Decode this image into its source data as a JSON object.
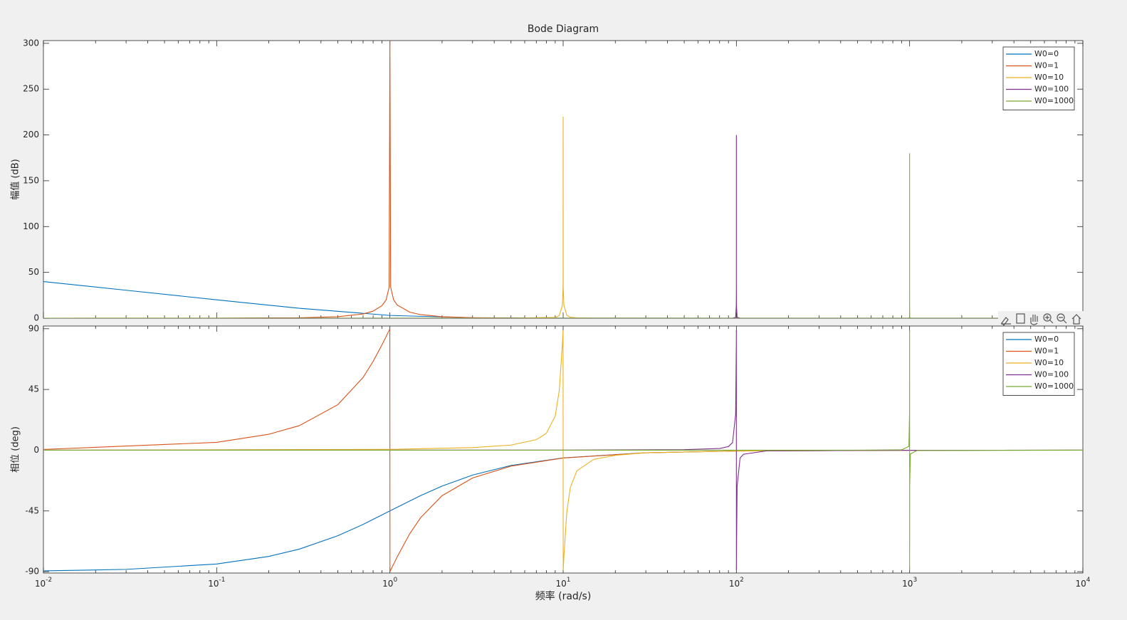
{
  "chart_data": [
    {
      "type": "line",
      "title": "Bode Diagram",
      "ylabel": "幅值 (dB)",
      "xscale": "log",
      "xlim": [
        0.01,
        10000
      ],
      "ylim": [
        0,
        303
      ],
      "yticks": [
        0,
        50,
        100,
        150,
        200,
        250,
        300
      ],
      "legend": "northeast",
      "series": [
        {
          "name": "W0=0",
          "color": "#0072BD",
          "x": [
            0.01,
            0.03,
            0.1,
            0.3,
            1,
            3,
            10,
            100,
            10000
          ],
          "values": [
            40,
            30.5,
            20.04,
            10.8,
            3.01,
            0.46,
            0.04,
            0,
            0
          ]
        },
        {
          "name": "W0=1",
          "color": "#D95319",
          "x": [
            0.01,
            0.1,
            0.3,
            0.5,
            0.7,
            0.8,
            0.9,
            0.95,
            0.99,
            1,
            1.01,
            1.05,
            1.1,
            1.3,
            1.5,
            2,
            3,
            5,
            10,
            100,
            10000
          ],
          "values": [
            0,
            0.04,
            0.45,
            1.6,
            4.6,
            7.7,
            13.7,
            19.8,
            33.9,
            303,
            34,
            20.2,
            14.5,
            6.6,
            3.9,
            1.6,
            0.57,
            0.18,
            0,
            0,
            0
          ]
        },
        {
          "name": "W0=10",
          "color": "#EDB120",
          "x": [
            0.01,
            1,
            5,
            9,
            9.5,
            9.9,
            9.99,
            10,
            10.01,
            10.1,
            10.5,
            11,
            12,
            15,
            100,
            10000
          ],
          "values": [
            0,
            0,
            0.02,
            0.88,
            2.9,
            14.1,
            34,
            220,
            34,
            14.2,
            3.1,
            1.05,
            0.31,
            0.05,
            0,
            0
          ]
        },
        {
          "name": "W0=100",
          "color": "#7E2F8E",
          "x": [
            0.01,
            95,
            99,
            99.9,
            99.99,
            100,
            100.01,
            100.1,
            101,
            105,
            10000
          ],
          "values": [
            0,
            0.04,
            0.95,
            14.1,
            34,
            200,
            34,
            14.1,
            0.95,
            0.04,
            0
          ]
        },
        {
          "name": "W0=1000",
          "color": "#77AC30",
          "x": [
            0.01,
            990,
            999,
            999.9,
            999.99,
            1000,
            1000.01,
            1000.1,
            1001,
            1010,
            10000
          ],
          "values": [
            0,
            0.01,
            0.97,
            14.2,
            34,
            180,
            34,
            14.2,
            0.97,
            0.01,
            0
          ]
        }
      ]
    },
    {
      "type": "line",
      "ylabel": "相位 (deg)",
      "xlabel": "频率  (rad/s)",
      "xscale": "log",
      "xlim": [
        0.01,
        10000
      ],
      "ylim": [
        -91,
        92
      ],
      "yticks": [
        -90,
        -45,
        0,
        45,
        90
      ],
      "legend": "northeast",
      "xticks": [
        {
          "value": 0.01,
          "label": "10",
          "exponent": "-2"
        },
        {
          "value": 0.1,
          "label": "10",
          "exponent": "-1"
        },
        {
          "value": 1,
          "label": "10",
          "exponent": "0"
        },
        {
          "value": 10,
          "label": "10",
          "exponent": "1"
        },
        {
          "value": 100,
          "label": "10",
          "exponent": "2"
        },
        {
          "value": 1000,
          "label": "10",
          "exponent": "3"
        },
        {
          "value": 10000,
          "label": "10",
          "exponent": "4"
        }
      ],
      "series": [
        {
          "name": "W0=0",
          "color": "#0072BD",
          "x": [
            0.01,
            0.03,
            0.1,
            0.2,
            0.3,
            0.5,
            0.7,
            1,
            1.5,
            2,
            3,
            5,
            10,
            30,
            100,
            1000,
            10000
          ],
          "values": [
            -89.4,
            -88.3,
            -84.3,
            -78.7,
            -73.3,
            -63.4,
            -55,
            -45,
            -33.7,
            -26.6,
            -18.4,
            -11.3,
            -5.7,
            -1.9,
            -0.6,
            -0.06,
            0
          ]
        },
        {
          "name": "W0=1",
          "color": "#D95319",
          "x": [
            0.01,
            0.1,
            0.2,
            0.3,
            0.5,
            0.7,
            0.8,
            0.9,
            0.95,
            0.99,
            0.999,
            1.001,
            1.01,
            1.1,
            1.3,
            1.5,
            2,
            3,
            5,
            10,
            30,
            100,
            1000,
            10000
          ],
          "values": [
            0.57,
            5.8,
            11.8,
            18.2,
            33.7,
            53.9,
            65.8,
            78.1,
            84.1,
            88.8,
            89.9,
            -89.9,
            -88.9,
            -79.2,
            -62,
            -50.2,
            -33.7,
            -20.6,
            -11.8,
            -5.8,
            -1.9,
            -0.57,
            -0.06,
            0
          ]
        },
        {
          "name": "W0=10",
          "color": "#EDB120",
          "x": [
            0.01,
            1,
            3,
            5,
            7,
            8,
            9,
            9.5,
            9.9,
            9.99,
            10.01,
            10.1,
            10.5,
            11,
            12,
            15,
            20,
            30,
            100,
            1000,
            10000
          ],
          "values": [
            0,
            0.58,
            1.9,
            3.8,
            7.8,
            12.5,
            25.3,
            44.3,
            78.6,
            88.9,
            -88.9,
            -78.7,
            -45.7,
            -27.6,
            -15.3,
            -6.8,
            -3.8,
            -1.9,
            -0.58,
            -0.06,
            0
          ]
        },
        {
          "name": "W0=100",
          "color": "#7E2F8E",
          "x": [
            0.01,
            10,
            50,
            80,
            90,
            95,
            99,
            99.9,
            99.99,
            100.01,
            100.1,
            101,
            105,
            110,
            150,
            1000,
            10000
          ],
          "values": [
            0,
            0.06,
            0.38,
            1.27,
            2.7,
            5.6,
            26.4,
            78.7,
            88.9,
            -88.9,
            -78.7,
            -26.7,
            -5.8,
            -3,
            -0.46,
            -0.06,
            0
          ]
        },
        {
          "name": "W0=1000",
          "color": "#77AC30",
          "x": [
            0.01,
            100,
            500,
            900,
            990,
            999,
            999.9,
            999.99,
            1000.01,
            1000.1,
            1001,
            1010,
            1100,
            10000
          ],
          "values": [
            0,
            0.01,
            0.04,
            0.27,
            2.85,
            26.6,
            78.7,
            88.9,
            -88.9,
            -78.7,
            -26.6,
            -2.8,
            -0.27,
            0
          ]
        }
      ]
    }
  ]
}
